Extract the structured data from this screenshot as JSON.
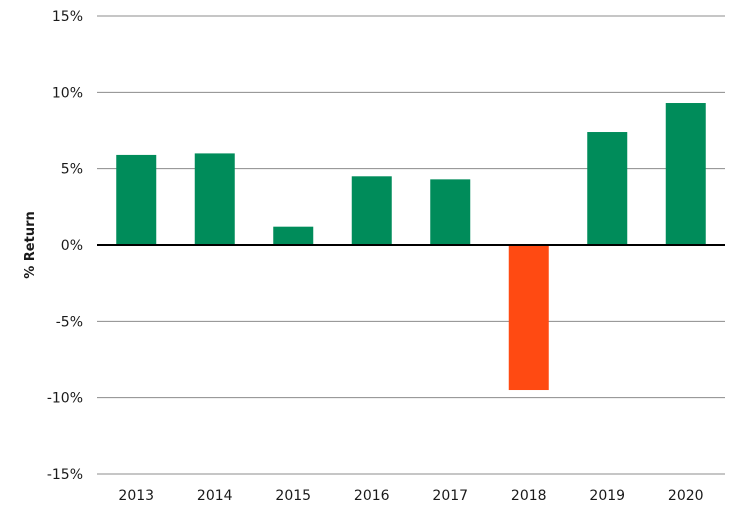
{
  "chart_data": {
    "type": "bar",
    "categories": [
      "2013",
      "2014",
      "2015",
      "2016",
      "2017",
      "2018",
      "2019",
      "2020"
    ],
    "values": [
      5.9,
      6.0,
      1.2,
      4.5,
      4.3,
      -9.5,
      7.4,
      9.3
    ],
    "ylabel": "% Return",
    "xlabel": "",
    "ylim": [
      -15,
      15
    ],
    "yticks": [
      15,
      10,
      5,
      0,
      -5,
      -10,
      -15
    ],
    "ytick_labels": [
      "15%",
      "10%",
      "5%",
      "0%",
      "-5%",
      "-10%",
      "-15%"
    ],
    "grid": true,
    "legend": "none",
    "colors": {
      "positive": "#008c5a",
      "negative": "#ff4a12",
      "zero_line": "#000000",
      "gridline": "#8c8c8c"
    }
  }
}
